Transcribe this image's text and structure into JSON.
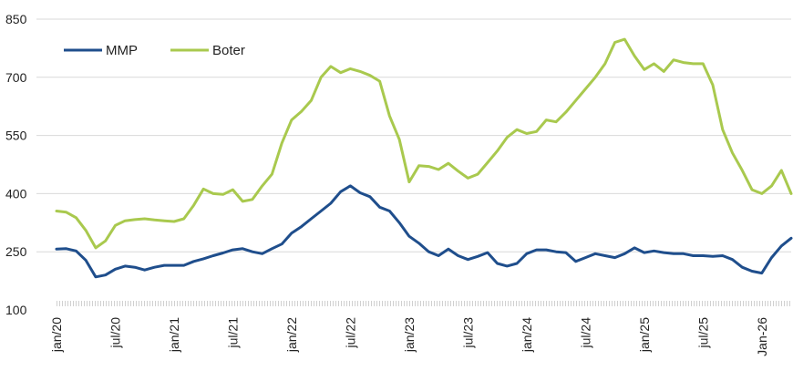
{
  "chart_data": {
    "type": "line",
    "title": "",
    "xlabel": "",
    "ylabel": "",
    "ylim": [
      100,
      850
    ],
    "yticks": [
      100,
      250,
      400,
      550,
      700,
      850
    ],
    "grid": true,
    "legend_position": "top-left",
    "x_tick_labels": [
      "jan/20",
      "jul/20",
      "jan/21",
      "jul/21",
      "jan/22",
      "jul/22",
      "jan/23",
      "jul/23",
      "jan/24",
      "jul/24",
      "jan/25",
      "jul/25",
      "Jan-26"
    ],
    "x": [
      "Jan-20",
      "Feb-20",
      "Mar-20",
      "Apr-20",
      "May-20",
      "Jun-20",
      "Jul-20",
      "Aug-20",
      "Sep-20",
      "Oct-20",
      "Nov-20",
      "Dec-20",
      "Jan-21",
      "Feb-21",
      "Mar-21",
      "Apr-21",
      "May-21",
      "Jun-21",
      "Jul-21",
      "Aug-21",
      "Sep-21",
      "Oct-21",
      "Nov-21",
      "Dec-21",
      "Jan-22",
      "Feb-22",
      "Mar-22",
      "Apr-22",
      "May-22",
      "Jun-22",
      "Jul-22",
      "Aug-22",
      "Sep-22",
      "Oct-22",
      "Nov-22",
      "Dec-22",
      "Jan-23",
      "Feb-23",
      "Mar-23",
      "Apr-23",
      "May-23",
      "Jun-23",
      "Jul-23",
      "Aug-23",
      "Sep-23",
      "Oct-23",
      "Nov-23",
      "Dec-23",
      "Jan-24",
      "Feb-24",
      "Mar-24",
      "Apr-24",
      "May-24",
      "Jun-24",
      "Jul-24",
      "Aug-24",
      "Sep-24",
      "Oct-24",
      "Nov-24",
      "Dec-24",
      "Jan-25",
      "Feb-25",
      "Mar-25",
      "Apr-25",
      "May-25",
      "Jun-25",
      "Jul-25",
      "Aug-25",
      "Sep-25",
      "Oct-25",
      "Nov-25",
      "Dec-25",
      "Jan-26",
      "Feb-26",
      "Mar-26",
      "Apr-26"
    ],
    "series": [
      {
        "name": "MMP",
        "color": "#1f4e8c",
        "values": [
          257,
          258,
          252,
          228,
          185,
          190,
          205,
          213,
          210,
          203,
          210,
          215,
          215,
          215,
          225,
          232,
          240,
          247,
          255,
          258,
          250,
          245,
          258,
          270,
          298,
          315,
          335,
          355,
          375,
          405,
          420,
          402,
          392,
          365,
          355,
          325,
          290,
          272,
          250,
          240,
          257,
          240,
          230,
          238,
          248,
          220,
          213,
          220,
          245,
          255,
          255,
          250,
          248,
          225,
          235,
          245,
          240,
          235,
          245,
          260,
          248,
          252,
          248,
          245,
          245,
          240,
          240,
          238,
          240,
          230,
          210,
          200,
          195,
          235,
          265,
          285
        ]
      },
      {
        "name": "Boter",
        "color": "#a9c94e",
        "values": [
          355,
          352,
          338,
          305,
          260,
          278,
          318,
          330,
          333,
          335,
          332,
          330,
          328,
          335,
          370,
          412,
          400,
          398,
          410,
          380,
          385,
          420,
          450,
          530,
          590,
          612,
          640,
          700,
          728,
          712,
          722,
          715,
          705,
          690,
          600,
          540,
          430,
          472,
          470,
          462,
          478,
          458,
          440,
          450,
          480,
          510,
          545,
          565,
          555,
          560,
          590,
          585,
          610,
          640,
          670,
          700,
          735,
          790,
          798,
          755,
          720,
          735,
          715,
          745,
          738,
          735,
          735,
          680,
          565,
          505,
          460,
          410,
          400,
          420,
          460,
          400
        ]
      }
    ]
  },
  "legend": {
    "items": [
      {
        "label": "MMP",
        "color": "#1f4e8c"
      },
      {
        "label": "Boter",
        "color": "#a9c94e"
      }
    ]
  }
}
